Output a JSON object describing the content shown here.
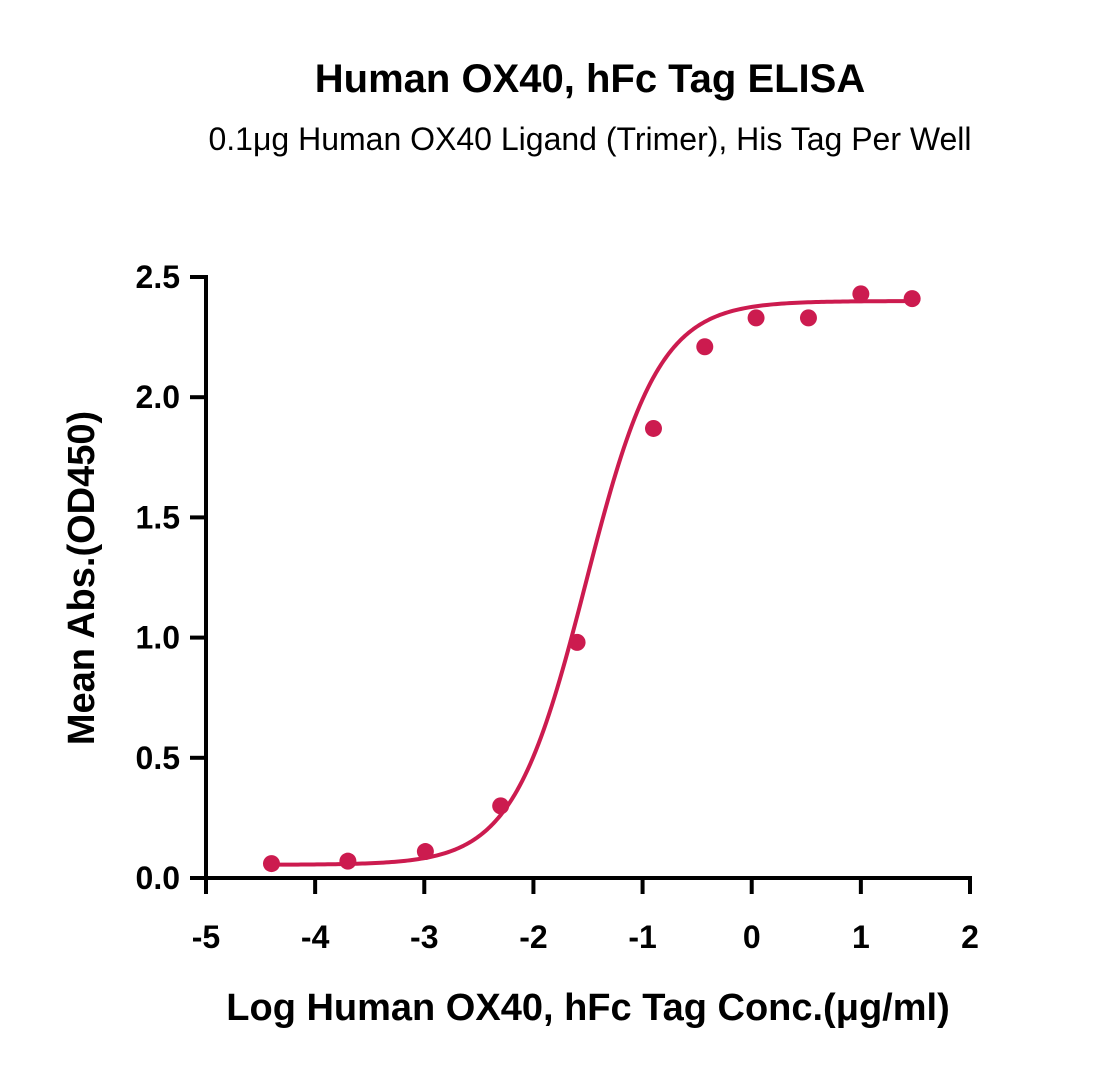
{
  "chart_data": {
    "type": "scatter",
    "title": "Human OX40, hFc Tag ELISA",
    "subtitle": "0.1μg Human OX40 Ligand (Trimer), His Tag Per Well",
    "xlabel": "Log Human OX40, hFc Tag Conc.(μg/ml)",
    "ylabel": "Mean Abs.(OD450)",
    "xlim": [
      -5,
      2
    ],
    "ylim": [
      0,
      2.5
    ],
    "x_ticks": [
      -5,
      -4,
      -3,
      -2,
      -1,
      0,
      1,
      2
    ],
    "x_tick_labels": [
      "-5",
      "-4",
      "-3",
      "-2",
      "-1",
      "0",
      "1",
      "2"
    ],
    "y_ticks": [
      0,
      0.5,
      1,
      1.5,
      2,
      2.5
    ],
    "y_tick_labels": [
      "0.0",
      "0.5",
      "1.0",
      "1.5",
      "2.0",
      "2.5"
    ],
    "grid": false,
    "series": [
      {
        "name": "Human OX40, hFc Tag",
        "color": "#cc1b4f",
        "x": [
          -4.4,
          -3.7,
          -2.99,
          -2.3,
          -1.6,
          -0.9,
          -0.43,
          0.04,
          0.52,
          1.0,
          1.47
        ],
        "y": [
          0.06,
          0.07,
          0.11,
          0.3,
          0.98,
          1.87,
          2.21,
          2.33,
          2.33,
          2.43,
          2.41
        ]
      }
    ],
    "fit_curve": {
      "model": "4PL",
      "bottom": 0.055,
      "top": 2.4,
      "log_ec50": -1.52,
      "hill_slope": 1.3,
      "color": "#cc1b4f"
    }
  }
}
